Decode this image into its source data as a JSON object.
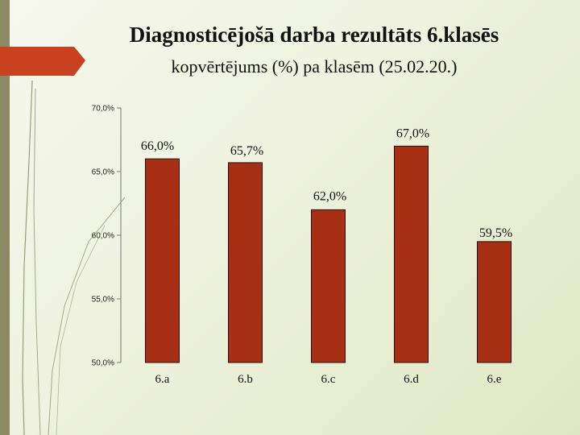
{
  "slide": {
    "title": "Diagnosticējošā darba rezultāts 6.klasēs",
    "subtitle": "kopvērtējums (%)  pa klasēm (25.02.20.)"
  },
  "colors": {
    "bar_fill": "#a62f14",
    "bar_stroke": "#2a0e06",
    "accent_arrow": "#c8421f",
    "side_band": "#8b8a64"
  },
  "chart_data": {
    "type": "bar",
    "title": "",
    "xlabel": "",
    "ylabel": "",
    "categories": [
      "6.a",
      "6.b",
      "6.c",
      "6.d",
      "6.e"
    ],
    "values": [
      66.0,
      65.7,
      62.0,
      67.0,
      59.5
    ],
    "data_labels": [
      "66,0%",
      "65,7%",
      "62,0%",
      "67,0%",
      "59,5%"
    ],
    "ylim": [
      50,
      70
    ],
    "yticks": [
      50,
      55,
      60,
      65,
      70
    ],
    "ytick_labels": [
      "50,0%",
      "55,0%",
      "60,0%",
      "65,0%",
      "70,0%"
    ],
    "grid": false,
    "legend": "none"
  }
}
